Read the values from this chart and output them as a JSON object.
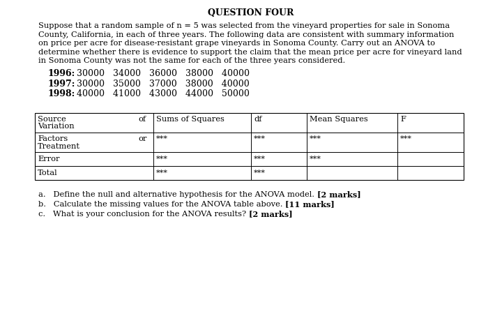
{
  "title": "QUESTION FOUR",
  "para_lines": [
    "Suppose that a random sample of n = 5 was selected from the vineyard properties for sale in Sonoma",
    "County, California, in each of three years. The following data are consistent with summary information",
    "on price per acre for disease-resistant grape vineyards in Sonoma County. Carry out an ANOVA to",
    "determine whether there is evidence to support the claim that the mean price per acre for vineyard land",
    "in Sonoma County was not the same for each of the three years considered."
  ],
  "data_rows": [
    {
      "year": "1996:",
      "values": "30000   34000   36000   38000   40000"
    },
    {
      "year": "1997:",
      "values": "30000   35000   37000   38000   40000"
    },
    {
      "year": "1998:",
      "values": "40000   41000   43000   44000   50000"
    }
  ],
  "questions": [
    {
      "normal": "a.   Define the null and alternative hypothesis for the ANOVA model. ",
      "bold": "[2 marks]"
    },
    {
      "normal": "b.   Calculate the missing values for the ANOVA table above. ",
      "bold": "[11 marks]"
    },
    {
      "normal": "c.   What is your conclusion for the ANOVA results? ",
      "bold": "[2 marks]"
    }
  ],
  "bg_color": "#ffffff",
  "text_color": "#000000"
}
